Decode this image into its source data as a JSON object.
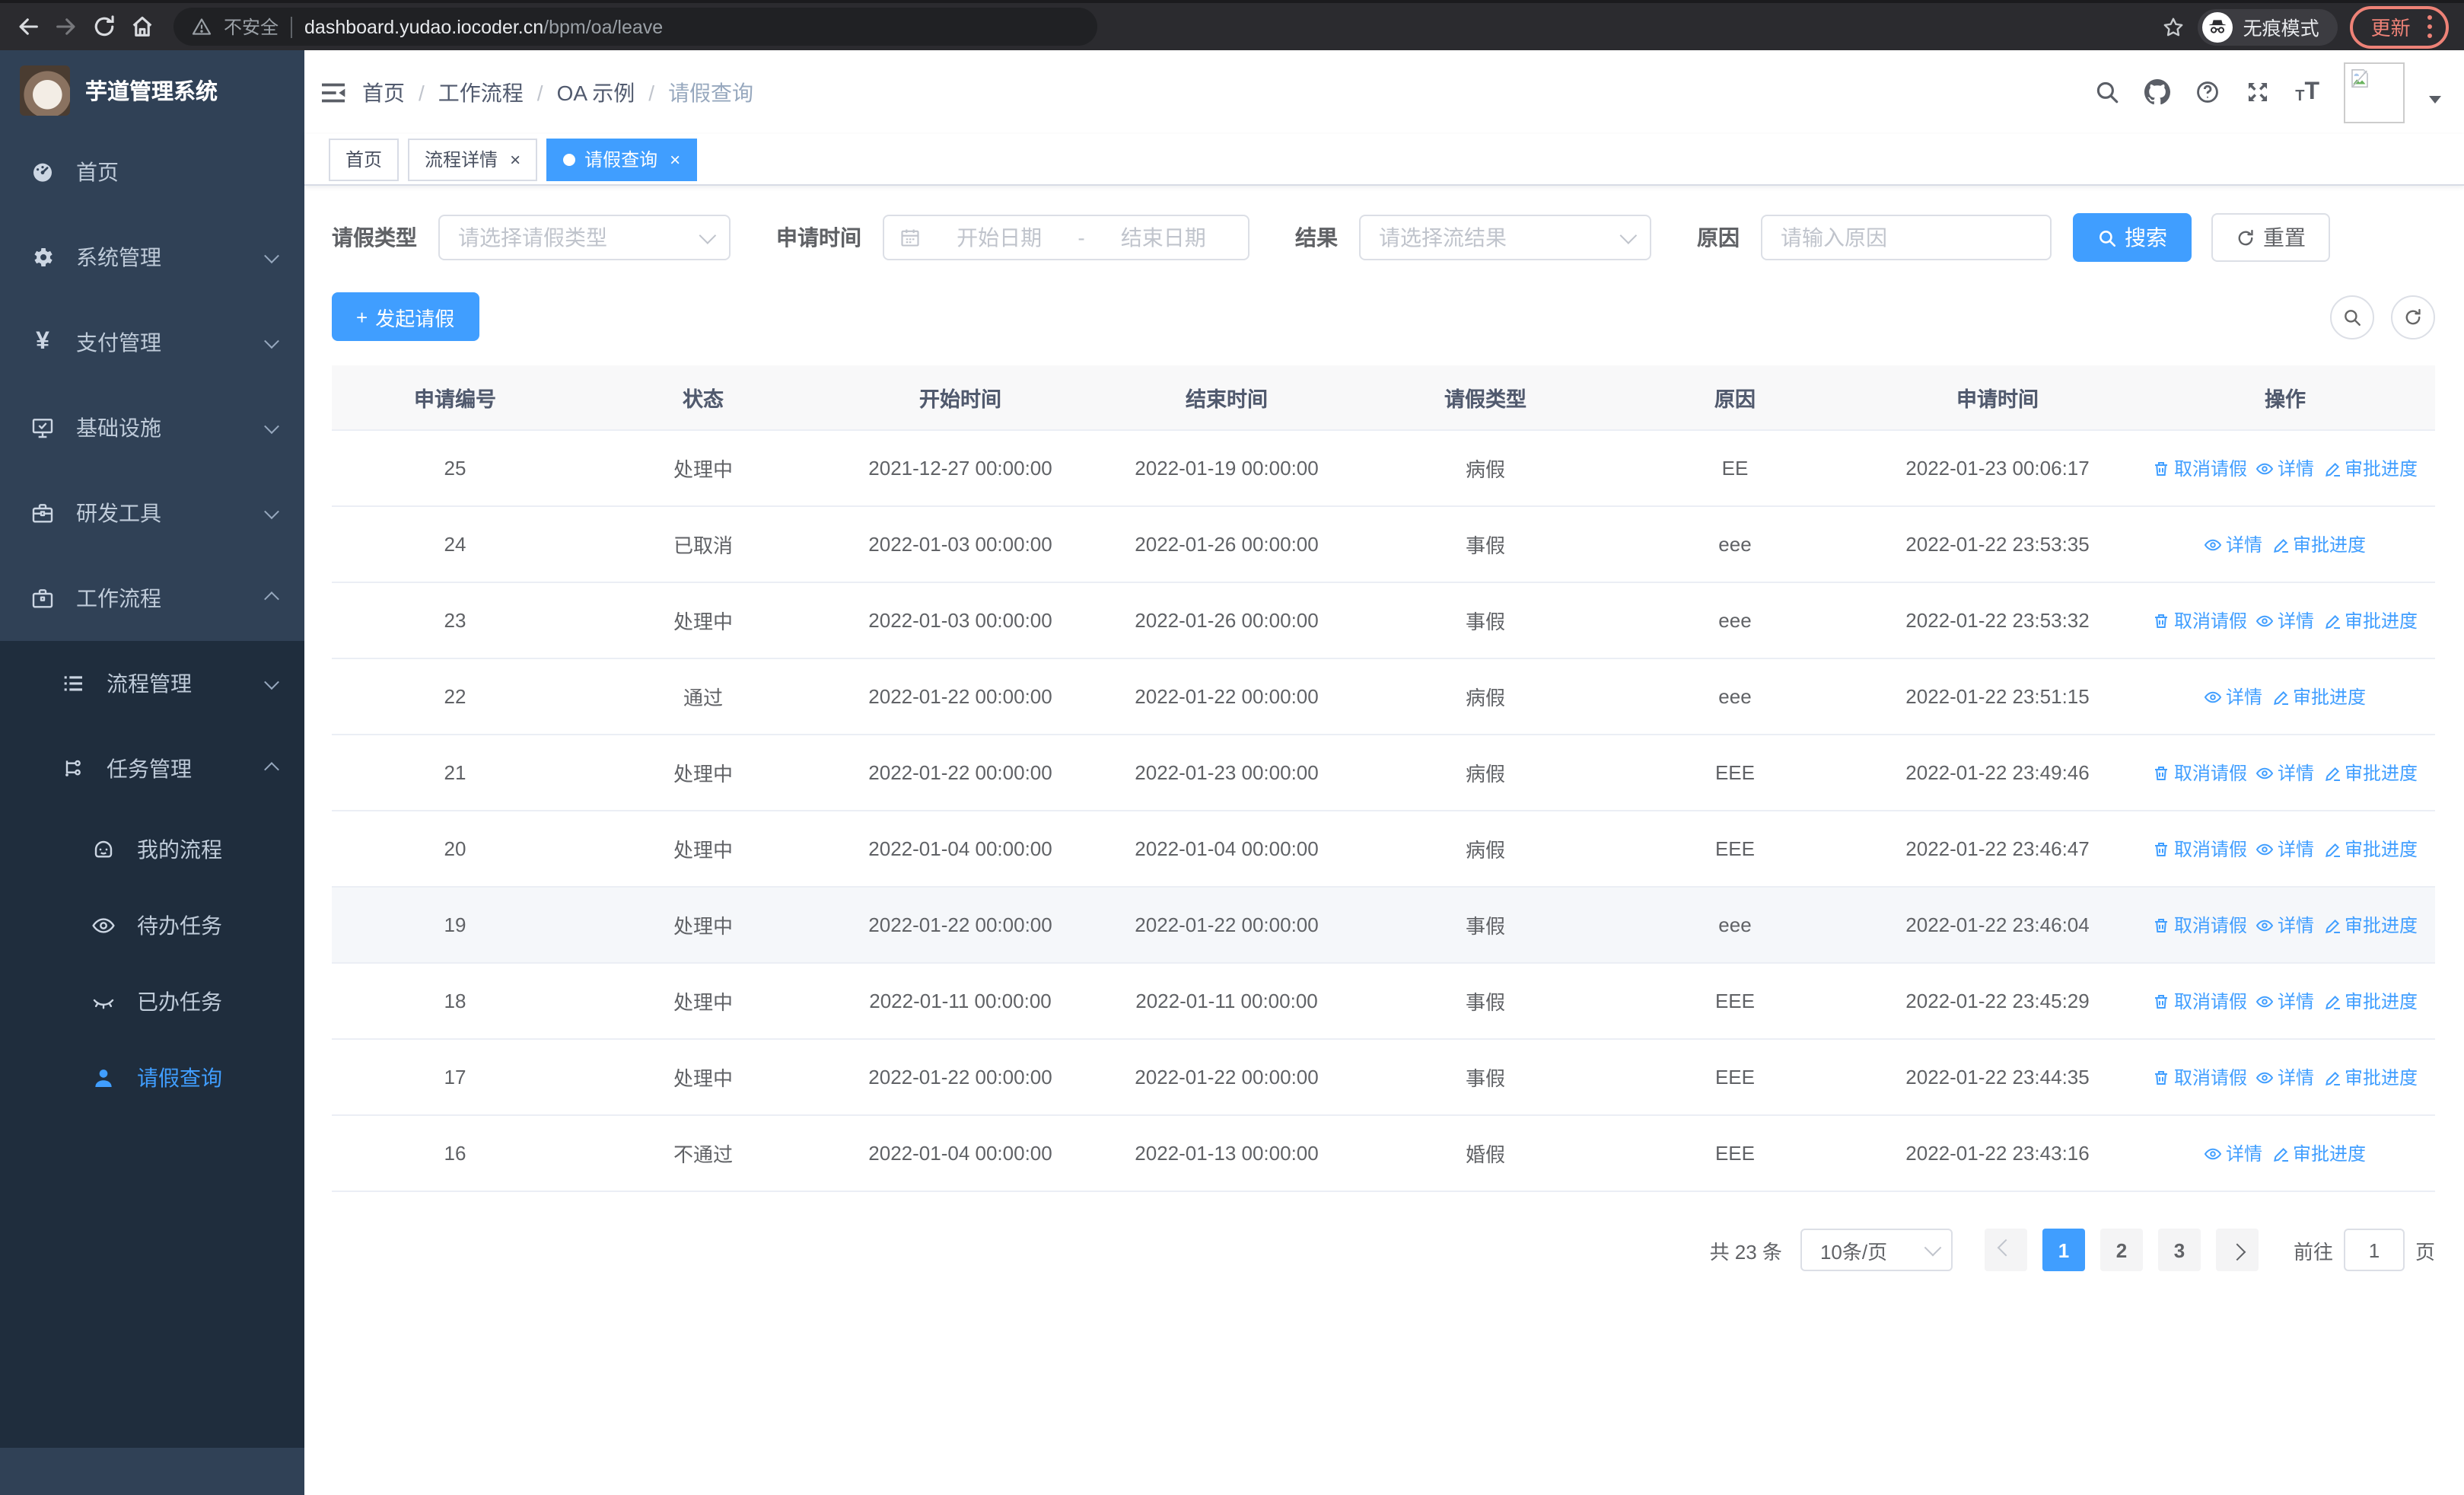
{
  "browser": {
    "security_label": "不安全",
    "url_host": "dashboard.yudao.iocoder.cn",
    "url_path": "/bpm/oa/leave",
    "incognito_label": "无痕模式",
    "update_label": "更新",
    "nav_icons": [
      "back-icon",
      "forward-icon",
      "reload-icon",
      "home-icon",
      "warning-icon",
      "star-icon",
      "incognito-icon",
      "kebab-menu-icon"
    ]
  },
  "sidebar": {
    "app_title": "芋道管理系统",
    "items": [
      {
        "label": "首页",
        "icon": "dashboard-icon",
        "expandable": false
      },
      {
        "label": "系统管理",
        "icon": "gear-icon",
        "expandable": true,
        "expanded": false
      },
      {
        "label": "支付管理",
        "icon": "yen-icon",
        "expandable": true,
        "expanded": false
      },
      {
        "label": "基础设施",
        "icon": "monitor-icon",
        "expandable": true,
        "expanded": false
      },
      {
        "label": "研发工具",
        "icon": "toolbox-icon",
        "expandable": true,
        "expanded": false
      },
      {
        "label": "工作流程",
        "icon": "briefcase-icon",
        "expandable": true,
        "expanded": true
      }
    ],
    "submenu": [
      {
        "label": "流程管理",
        "icon": "list-icon",
        "expandable": true,
        "expanded": false
      },
      {
        "label": "任务管理",
        "icon": "flow-icon",
        "expandable": true,
        "expanded": true
      }
    ],
    "task_items": [
      {
        "label": "我的流程",
        "icon": "face-icon",
        "active": false
      },
      {
        "label": "待办任务",
        "icon": "eye-open-icon",
        "active": false
      },
      {
        "label": "已办任务",
        "icon": "eye-closed-icon",
        "active": false
      },
      {
        "label": "请假查询",
        "icon": "user-icon",
        "active": true
      }
    ]
  },
  "header": {
    "breadcrumb": [
      "首页",
      "工作流程",
      "OA 示例",
      "请假查询"
    ],
    "separator": "/",
    "right_icons": [
      "search-icon",
      "github-icon",
      "help-icon",
      "fullscreen-icon",
      "font-size-icon",
      "avatar",
      "caret-down-icon"
    ]
  },
  "tabs": [
    {
      "label": "首页",
      "closable": false,
      "active": false
    },
    {
      "label": "流程详情",
      "closable": true,
      "active": false
    },
    {
      "label": "请假查询",
      "closable": true,
      "active": true
    }
  ],
  "close_glyph": "×",
  "filters": {
    "leave_type_label": "请假类型",
    "leave_type_placeholder": "请选择请假类型",
    "apply_time_label": "申请时间",
    "start_date_placeholder": "开始日期",
    "range_separator": "-",
    "end_date_placeholder": "结束日期",
    "result_label": "结果",
    "result_placeholder": "请选择流结果",
    "reason_label": "原因",
    "reason_placeholder": "请输入原因",
    "search_label": "搜索",
    "reset_label": "重置"
  },
  "toolbar": {
    "create_label": "发起请假",
    "plus_glyph": "+",
    "right_icons": [
      "search-circle-button",
      "refresh-circle-button"
    ]
  },
  "table": {
    "columns": [
      "申请编号",
      "状态",
      "开始时间",
      "结束时间",
      "请假类型",
      "原因",
      "申请时间",
      "操作"
    ],
    "column_keys": [
      "id",
      "status",
      "start",
      "end",
      "type",
      "reason",
      "applied"
    ],
    "action_labels": {
      "cancel": "取消请假",
      "detail": "详情",
      "progress": "审批进度"
    },
    "rows": [
      {
        "id": "25",
        "status": "处理中",
        "start": "2021-12-27 00:00:00",
        "end": "2022-01-19 00:00:00",
        "type": "病假",
        "reason": "EE",
        "applied": "2022-01-23 00:06:17",
        "actions": [
          "cancel",
          "detail",
          "progress"
        ],
        "hover": false
      },
      {
        "id": "24",
        "status": "已取消",
        "start": "2022-01-03 00:00:00",
        "end": "2022-01-26 00:00:00",
        "type": "事假",
        "reason": "eee",
        "applied": "2022-01-22 23:53:35",
        "actions": [
          "detail",
          "progress"
        ],
        "hover": false
      },
      {
        "id": "23",
        "status": "处理中",
        "start": "2022-01-03 00:00:00",
        "end": "2022-01-26 00:00:00",
        "type": "事假",
        "reason": "eee",
        "applied": "2022-01-22 23:53:32",
        "actions": [
          "cancel",
          "detail",
          "progress"
        ],
        "hover": false
      },
      {
        "id": "22",
        "status": "通过",
        "start": "2022-01-22 00:00:00",
        "end": "2022-01-22 00:00:00",
        "type": "病假",
        "reason": "eee",
        "applied": "2022-01-22 23:51:15",
        "actions": [
          "detail",
          "progress"
        ],
        "hover": false
      },
      {
        "id": "21",
        "status": "处理中",
        "start": "2022-01-22 00:00:00",
        "end": "2022-01-23 00:00:00",
        "type": "病假",
        "reason": "EEE",
        "applied": "2022-01-22 23:49:46",
        "actions": [
          "cancel",
          "detail",
          "progress"
        ],
        "hover": false
      },
      {
        "id": "20",
        "status": "处理中",
        "start": "2022-01-04 00:00:00",
        "end": "2022-01-04 00:00:00",
        "type": "病假",
        "reason": "EEE",
        "applied": "2022-01-22 23:46:47",
        "actions": [
          "cancel",
          "detail",
          "progress"
        ],
        "hover": false
      },
      {
        "id": "19",
        "status": "处理中",
        "start": "2022-01-22 00:00:00",
        "end": "2022-01-22 00:00:00",
        "type": "事假",
        "reason": "eee",
        "applied": "2022-01-22 23:46:04",
        "actions": [
          "cancel",
          "detail",
          "progress"
        ],
        "hover": true
      },
      {
        "id": "18",
        "status": "处理中",
        "start": "2022-01-11 00:00:00",
        "end": "2022-01-11 00:00:00",
        "type": "事假",
        "reason": "EEE",
        "applied": "2022-01-22 23:45:29",
        "actions": [
          "cancel",
          "detail",
          "progress"
        ],
        "hover": false
      },
      {
        "id": "17",
        "status": "处理中",
        "start": "2022-01-22 00:00:00",
        "end": "2022-01-22 00:00:00",
        "type": "事假",
        "reason": "EEE",
        "applied": "2022-01-22 23:44:35",
        "actions": [
          "cancel",
          "detail",
          "progress"
        ],
        "hover": false
      },
      {
        "id": "16",
        "status": "不通过",
        "start": "2022-01-04 00:00:00",
        "end": "2022-01-13 00:00:00",
        "type": "婚假",
        "reason": "EEE",
        "applied": "2022-01-22 23:43:16",
        "actions": [
          "detail",
          "progress"
        ],
        "hover": false
      }
    ],
    "action_icons": {
      "cancel": "trash-icon",
      "detail": "eye-icon",
      "progress": "edit-icon"
    }
  },
  "pagination": {
    "total_label": "共 23 条",
    "page_size": "10条/页",
    "pages": [
      "1",
      "2",
      "3"
    ],
    "active_page": "1",
    "goto_label": "前往",
    "goto_value": "1",
    "page_label": "页"
  },
  "colors": {
    "accent": "#409eff",
    "sidebar_bg": "#304156",
    "submenu_bg": "#1f2d3d",
    "sidebar_text": "#bfcbd9",
    "browser_bar_bg": "#2b2b2f",
    "url_pill_bg": "#202124",
    "update_chip": "#ee8277",
    "table_header_bg": "#f8f8f9",
    "table_border": "#ebeef5",
    "row_hover_bg": "#f5f7fa",
    "text_main": "#606266",
    "placeholder": "#c0c4cc"
  }
}
